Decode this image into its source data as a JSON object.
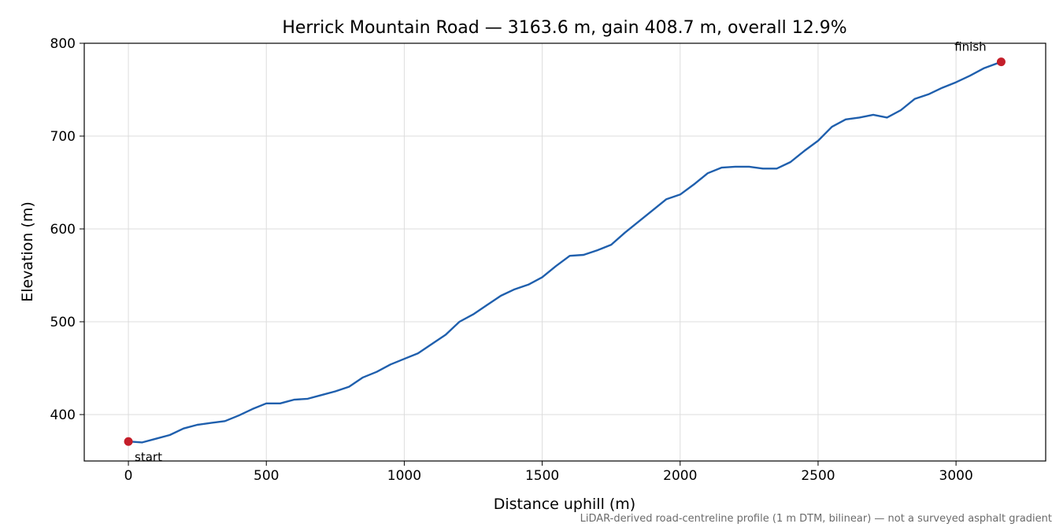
{
  "chart_data": {
    "type": "line",
    "title": "Herrick Mountain Road — 3163.6 m, gain 408.7 m, overall 12.9%",
    "xlabel": "Distance uphill (m)",
    "ylabel": "Elevation (m)",
    "xlim": [
      -160,
      3325
    ],
    "ylim": [
      350,
      800
    ],
    "xticks": [
      0,
      500,
      1000,
      1500,
      2000,
      2500,
      3000
    ],
    "yticks": [
      400,
      500,
      600,
      700,
      800
    ],
    "grid": true,
    "colors": {
      "line": "#1f5fad",
      "marker": "#c41e2a",
      "grid": "#dddddd"
    },
    "series": [
      {
        "x": [
          0,
          50,
          100,
          150,
          200,
          250,
          300,
          350,
          400,
          450,
          500,
          550,
          600,
          650,
          700,
          750,
          800,
          850,
          900,
          950,
          1000,
          1050,
          1100,
          1150,
          1200,
          1250,
          1300,
          1350,
          1400,
          1450,
          1500,
          1550,
          1600,
          1650,
          1700,
          1750,
          1800,
          1850,
          1900,
          1950,
          2000,
          2050,
          2100,
          2150,
          2200,
          2250,
          2300,
          2350,
          2400,
          2450,
          2500,
          2550,
          2600,
          2650,
          2700,
          2750,
          2800,
          2850,
          2900,
          2950,
          3000,
          3050,
          3100,
          3163.6
        ],
        "y": [
          371,
          370,
          374,
          378,
          385,
          389,
          391,
          393,
          399,
          406,
          412,
          412,
          416,
          417,
          421,
          425,
          430,
          440,
          446,
          454,
          460,
          466,
          476,
          486,
          500,
          508,
          518,
          528,
          535,
          540,
          548,
          560,
          571,
          572,
          577,
          583,
          596,
          608,
          620,
          632,
          637,
          648,
          660,
          666,
          667,
          667,
          665,
          665,
          672,
          684,
          695,
          710,
          718,
          720,
          723,
          720,
          728,
          740,
          745,
          752,
          758,
          765,
          773,
          780
        ]
      }
    ],
    "annotations": [
      {
        "text": "start",
        "x": 0,
        "y": 371
      },
      {
        "text": "finish",
        "x": 3163.6,
        "y": 780
      }
    ],
    "footnote": "LiDAR-derived road-centreline profile (1 m DTM, bilinear) — not a surveyed asphalt gradient"
  }
}
